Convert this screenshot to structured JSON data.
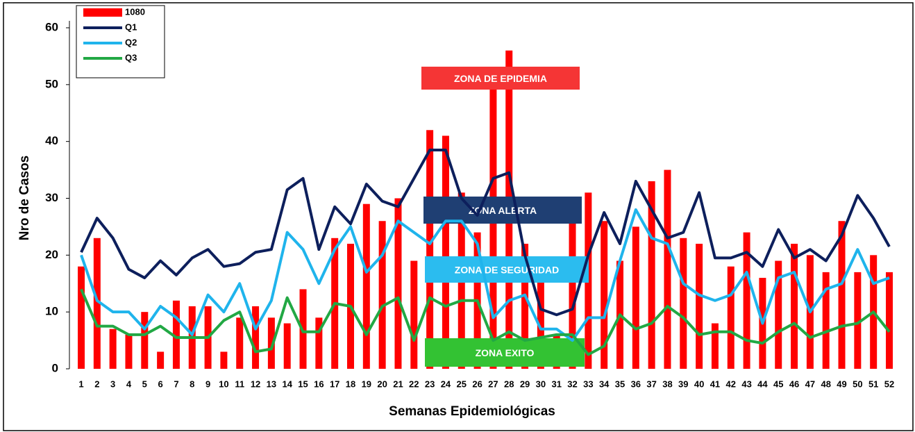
{
  "chart_data": {
    "type": "bar-line",
    "xlabel": "Semanas Epidemiológicas",
    "ylabel": "Nro de Casos",
    "categories": [
      "1",
      "2",
      "3",
      "4",
      "5",
      "6",
      "7",
      "8",
      "9",
      "10",
      "11",
      "12",
      "13",
      "14",
      "15",
      "16",
      "17",
      "18",
      "19",
      "20",
      "21",
      "22",
      "23",
      "24",
      "25",
      "26",
      "27",
      "28",
      "29",
      "30",
      "31",
      "32",
      "33",
      "34",
      "35",
      "36",
      "37",
      "38",
      "39",
      "40",
      "41",
      "42",
      "43",
      "44",
      "45",
      "46",
      "47",
      "48",
      "49",
      "50",
      "51",
      "52"
    ],
    "series": [
      {
        "name": "1080",
        "kind": "bar",
        "color": "#ff0000",
        "values": [
          18,
          23,
          7,
          6,
          10,
          3,
          12,
          11,
          11,
          3,
          9,
          11,
          9,
          8,
          14,
          9,
          23,
          22,
          29,
          26,
          30,
          19,
          42,
          41,
          31,
          24,
          50,
          56,
          22,
          16,
          6,
          26,
          31,
          26,
          19,
          25,
          33,
          35,
          23,
          22,
          8,
          18,
          24,
          16,
          19,
          22,
          20,
          17,
          26,
          17,
          20,
          17
        ]
      },
      {
        "name": "Q1",
        "kind": "line",
        "color": "#0d1f5c",
        "values": [
          20.5,
          26.5,
          23,
          17.5,
          16,
          19,
          16.5,
          19.5,
          21,
          18,
          18.5,
          20.5,
          21,
          31.5,
          33.5,
          21,
          28.5,
          25.5,
          32.5,
          29.5,
          28.5,
          33.5,
          38.5,
          38.5,
          30,
          27,
          33.5,
          34.5,
          20,
          10.5,
          9.5,
          10.5,
          20,
          27.5,
          22,
          33,
          28,
          23,
          24,
          31,
          19.5,
          19.5,
          20.5,
          18,
          24.5,
          19.5,
          21,
          19,
          23.5,
          30.5,
          26.5,
          21.5
        ]
      },
      {
        "name": "Q2",
        "kind": "line",
        "color": "#1fb4ec",
        "values": [
          20,
          12,
          10,
          10,
          7,
          11,
          9,
          6,
          13,
          10,
          15,
          7,
          12,
          24,
          21,
          15,
          21,
          25,
          17,
          20,
          26,
          24,
          22,
          26,
          26,
          22,
          9,
          12,
          13,
          7,
          7,
          5,
          9,
          9,
          19,
          28,
          23,
          22,
          15,
          13,
          12,
          13,
          17,
          8,
          16,
          17,
          10,
          14,
          15,
          21,
          15,
          16
        ]
      },
      {
        "name": "Q3",
        "kind": "line",
        "color": "#22a844",
        "values": [
          14,
          7.5,
          7.5,
          6,
          6,
          7.5,
          5.5,
          5.5,
          5.5,
          8.5,
          10,
          3,
          3.5,
          12.5,
          6.5,
          6.5,
          11.5,
          11,
          6,
          11,
          12.5,
          5,
          12.5,
          11,
          12,
          12,
          5,
          6.5,
          5,
          5.5,
          6,
          6,
          2.5,
          4,
          9.5,
          7,
          8,
          11,
          9,
          6,
          6.5,
          6.5,
          5,
          4.5,
          6.5,
          8,
          5.5,
          6.5,
          7.5,
          8,
          10,
          6.5
        ]
      }
    ],
    "annotations": [
      {
        "text": "ZONA DE EPIDEMIA",
        "color": "#f53535"
      },
      {
        "text": "ZONA  ALERTA",
        "color": "#1f3f73"
      },
      {
        "text": "ZONA DE SEGURIDAD",
        "color": "#2bbcef"
      },
      {
        "text": "ZONA EXITO",
        "color": "#33c233"
      }
    ],
    "ylim": [
      0,
      60
    ],
    "yticks": [
      0,
      10,
      20,
      30,
      40,
      50,
      60
    ],
    "grid": false
  }
}
